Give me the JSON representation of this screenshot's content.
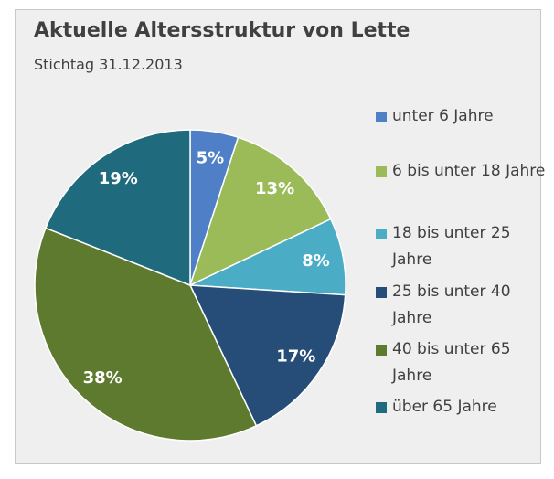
{
  "chart_data": {
    "type": "pie",
    "title": "Aktuelle Altersstruktur von Lette",
    "subtitle": "Stichtag 31.12.2013",
    "categories": [
      "unter 6 Jahre",
      "6 bis unter 18 Jahre",
      "18 bis unter 25 Jahre",
      "25 bis unter 40 Jahre",
      "40 bis unter 65 Jahre",
      "über 65 Jahre"
    ],
    "values": [
      5,
      13,
      8,
      17,
      38,
      19
    ],
    "value_labels": [
      "5%",
      "13%",
      "8%",
      "17%",
      "38%",
      "19%"
    ],
    "colors": [
      "#4f7fc6",
      "#9bbb59",
      "#4bacc6",
      "#264d78",
      "#5e7a2e",
      "#1f6a7d"
    ],
    "legend": "right"
  }
}
